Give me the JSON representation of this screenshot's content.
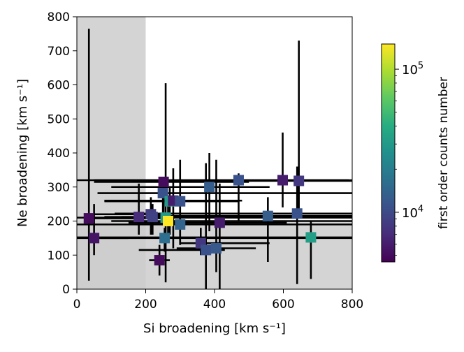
{
  "chart_data": {
    "type": "scatter",
    "title": "",
    "xlabel": "Si broadening [km s⁻¹]",
    "ylabel": "Ne broadening [km s⁻¹]",
    "xlim": [
      0,
      800
    ],
    "ylim": [
      0,
      800
    ],
    "xticks": [
      "0",
      "200",
      "400",
      "600",
      "800"
    ],
    "yticks": [
      "0",
      "100",
      "200",
      "300",
      "400",
      "500",
      "600",
      "700",
      "800"
    ],
    "grid": false,
    "shaded_regions": [
      {
        "x": [
          0,
          200
        ],
        "y": [
          0,
          800
        ],
        "color": "#cccccc"
      },
      {
        "x": [
          0,
          800
        ],
        "y": [
          0,
          200
        ],
        "color": "#cccccc"
      }
    ],
    "marker": "square",
    "error_bar_color": "#000000",
    "colorbar": {
      "label": "first order counts number",
      "scale": "log",
      "range": [
        4500,
        150000
      ],
      "colormap": "viridis",
      "ticks": [
        {
          "value": 10000,
          "base": "10",
          "exp": "4"
        },
        {
          "value": 100000,
          "base": "10",
          "exp": "5"
        }
      ]
    },
    "points": [
      {
        "x": 35,
        "y": 208,
        "xerr": [
          35,
          250
        ],
        "yerr": [
          25,
          765
        ],
        "counts": 5000
      },
      {
        "x": 50,
        "y": 150,
        "xerr": [
          50,
          150
        ],
        "yerr": [
          100,
          250
        ],
        "counts": 5500
      },
      {
        "x": 180,
        "y": 212,
        "xerr": [
          130,
          470
        ],
        "yerr": [
          160,
          310
        ],
        "counts": 7000
      },
      {
        "x": 215,
        "y": 220,
        "xerr": [
          30,
          260
        ],
        "yerr": [
          160,
          270
        ],
        "counts": 8500
      },
      {
        "x": 220,
        "y": 212,
        "xerr": [
          80,
          290
        ],
        "yerr": [
          160,
          250
        ],
        "counts": 9000
      },
      {
        "x": 240,
        "y": 85,
        "xerr": [
          210,
          270
        ],
        "yerr": [
          40,
          130
        ],
        "counts": 5000
      },
      {
        "x": 250,
        "y": 282,
        "xerr": [
          60,
          800
        ],
        "yerr": [
          200,
          320
        ],
        "counts": 11000
      },
      {
        "x": 252,
        "y": 315,
        "xerr": [
          50,
          500
        ],
        "yerr": [
          200,
          320
        ],
        "counts": 5000
      },
      {
        "x": 255,
        "y": 150,
        "xerr": [
          0,
          800
        ],
        "yerr": [
          110,
          180
        ],
        "counts": 16000
      },
      {
        "x": 258,
        "y": 210,
        "xerr": [
          0,
          800
        ],
        "yerr": [
          20,
          605
        ],
        "counts": 30000
      },
      {
        "x": 265,
        "y": 200,
        "xerr": [
          100,
          800
        ],
        "yerr": [
          140,
          250
        ],
        "counts": 150000
      },
      {
        "x": 270,
        "y": 258,
        "xerr": [
          200,
          470
        ],
        "yerr": [
          160,
          300
        ],
        "counts": 30000
      },
      {
        "x": 280,
        "y": 260,
        "xerr": [
          80,
          480
        ],
        "yerr": [
          120,
          355
        ],
        "counts": 6000
      },
      {
        "x": 300,
        "y": 258,
        "xerr": [
          80,
          330
        ],
        "yerr": [
          130,
          380
        ],
        "counts": 11000
      },
      {
        "x": 300,
        "y": 190,
        "xerr": [
          0,
          800
        ],
        "yerr": [
          130,
          270
        ],
        "counts": 14000
      },
      {
        "x": 360,
        "y": 135,
        "xerr": [
          300,
          560
        ],
        "yerr": [
          100,
          180
        ],
        "counts": 8000
      },
      {
        "x": 375,
        "y": 115,
        "xerr": [
          180,
          430
        ],
        "yerr": [
          0,
          370
        ],
        "counts": 11000
      },
      {
        "x": 385,
        "y": 300,
        "xerr": [
          100,
          560
        ],
        "yerr": [
          170,
          400
        ],
        "counts": 13000
      },
      {
        "x": 405,
        "y": 120,
        "xerr": [
          290,
          520
        ],
        "yerr": [
          50,
          380
        ],
        "counts": 12000
      },
      {
        "x": 415,
        "y": 195,
        "xerr": [
          150,
          610
        ],
        "yerr": [
          0,
          310
        ],
        "counts": 6000
      },
      {
        "x": 470,
        "y": 320,
        "xerr": [
          0,
          800
        ],
        "yerr": [
          200,
          340
        ],
        "counts": 11000
      },
      {
        "x": 555,
        "y": 215,
        "xerr": [
          210,
          800
        ],
        "yerr": [
          80,
          270
        ],
        "counts": 13000
      },
      {
        "x": 598,
        "y": 320,
        "xerr": [
          50,
          790
        ],
        "yerr": [
          240,
          460
        ],
        "counts": 6000
      },
      {
        "x": 640,
        "y": 222,
        "xerr": [
          110,
          800
        ],
        "yerr": [
          15,
          360
        ],
        "counts": 11000
      },
      {
        "x": 645,
        "y": 318,
        "xerr": [
          160,
          800
        ],
        "yerr": [
          220,
          730
        ],
        "counts": 8000
      },
      {
        "x": 680,
        "y": 152,
        "xerr": [
          0,
          800
        ],
        "yerr": [
          30,
          200
        ],
        "counts": 32000
      }
    ]
  }
}
